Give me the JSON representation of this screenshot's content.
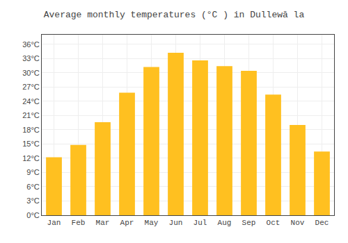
{
  "chart_data": {
    "type": "bar",
    "title": "Average monthly temperatures (°C ) in Dullewā la",
    "categories": [
      "Jan",
      "Feb",
      "Mar",
      "Apr",
      "May",
      "Jun",
      "Jul",
      "Aug",
      "Sep",
      "Oct",
      "Nov",
      "Dec"
    ],
    "values": [
      12.2,
      14.8,
      19.6,
      25.8,
      31.2,
      34.2,
      32.6,
      31.4,
      30.4,
      25.4,
      19.0,
      13.4
    ],
    "color": "#FFC020",
    "ylim": [
      0,
      38
    ],
    "yticks": [
      {
        "value": 0,
        "label": "0°C"
      },
      {
        "value": 3,
        "label": "3°C"
      },
      {
        "value": 6,
        "label": "6°C"
      },
      {
        "value": 9,
        "label": "9°C"
      },
      {
        "value": 12,
        "label": "12°C"
      },
      {
        "value": 15,
        "label": "15°C"
      },
      {
        "value": 18,
        "label": "18°C"
      },
      {
        "value": 21,
        "label": "21°C"
      },
      {
        "value": 24,
        "label": "24°C"
      },
      {
        "value": 27,
        "label": "27°C"
      },
      {
        "value": 30,
        "label": "30°C"
      },
      {
        "value": 33,
        "label": "33°C"
      },
      {
        "value": 36,
        "label": "36°C"
      }
    ],
    "grid": true
  }
}
